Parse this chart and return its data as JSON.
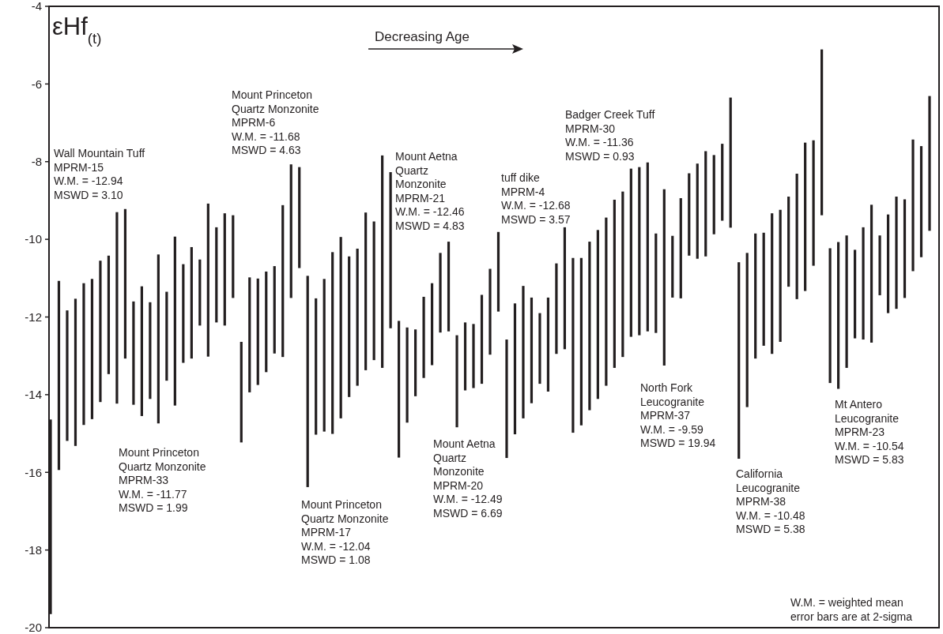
{
  "chart_data": {
    "type": "bar",
    "ylabel": "εHf$_{(t)}$",
    "annotations": [
      "Wall Mountain Tuff\nMPRM-15\nW.M. = -12.94\nMSWD = 3.10",
      "Mount Princeton\nQuartz Monzonite\nMPRM-33\nW.M. = -11.77\nMSWD = 1.99",
      "Mount Princeton\nQuartz Monzonite\nMPRM-6\nW.M. = -11.68\nMSWD = 4.63",
      "Mount Princeton\nQuartz Monzonite\nMPRM-17\nW.M. = -12.04\nMSWD = 1.08",
      "Mount Aetna\nQuartz\nMonzonite\nMPRM-21\nW.M. = -12.46\nMSWD = 4.83",
      "Mount Aetna\nQuartz\nMonzonite\nMPRM-20\nW.M. = -12.49\nMSWD = 6.69",
      "tuff dike\nMPRM-4\nW.M. = -12.68\nMSWD = 3.57",
      "Badger Creek Tuff\nMPRM-30\nW.M. = -11.36\nMSWD = 0.93",
      "North Fork\nLeucogranite\nMPRM-37\nW.M. = -9.59\nMSWD = 19.94",
      "California\nLeucogranite\nMPRM-38\nW.M. = -10.48\nMSWD = 5.38",
      "Mt Antero\nLeucogranite\nMPRM-23\nW.M. = -10.54\nMSWD = 5.83",
      "W.M. = weighted mean\nerror bars are at 2-sigma",
      "Decreasing Age"
    ],
    "categories": [
      null,
      null,
      null,
      null,
      null,
      null,
      null,
      null,
      null,
      null,
      null,
      null,
      null,
      null,
      null,
      null,
      null,
      null,
      null,
      null,
      null,
      null,
      null,
      null,
      null,
      null,
      null,
      null,
      null,
      null,
      null,
      null,
      null,
      null,
      null,
      null,
      null,
      null,
      null,
      null,
      null,
      null,
      null,
      null,
      null,
      null,
      null,
      null,
      null,
      null,
      null,
      null,
      null,
      null,
      null,
      null,
      null,
      null,
      null,
      null,
      null,
      null,
      null,
      null,
      null,
      null,
      null,
      null,
      null,
      null,
      null,
      null,
      null,
      null,
      null,
      null,
      null,
      null,
      null,
      null,
      null,
      null,
      null,
      null,
      null,
      null,
      null,
      null,
      null,
      null,
      null,
      null,
      null,
      null,
      null,
      null,
      null,
      null,
      null,
      null,
      null,
      null,
      null,
      null,
      null,
      null,
      null
    ],
    "base": [
      -19.65,
      -15.94,
      -15.19,
      -15.32,
      -14.78,
      -14.63,
      -14.19,
      -13.47,
      -14.23,
      -13.07,
      -14.26,
      -14.55,
      -14.11,
      -14.74,
      -13.64,
      -14.28,
      -13.18,
      -13.07,
      -12.22,
      -13.02,
      -12.14,
      -12.22,
      -11.51,
      -15.23,
      -13.94,
      -13.75,
      -13.42,
      -12.94,
      -13.03,
      -11.51,
      -10.74,
      -16.38,
      -15.03,
      -14.95,
      -15.01,
      -14.61,
      -14.06,
      -13.77,
      -13.37,
      -13.11,
      -13.31,
      -12.29,
      -15.62,
      -14.72,
      -14.04,
      -13.57,
      -13.24,
      -12.4,
      -12.37,
      -14.84,
      -13.89,
      -13.83,
      -13.72,
      -12.97,
      -11.86,
      -15.63,
      -15.02,
      -14.61,
      -14.22,
      -13.72,
      -13.92,
      -12.95,
      -12.83,
      -14.98,
      -14.79,
      -14.4,
      -14.11,
      -13.77,
      -13.31,
      -13.03,
      -12.51,
      -12.47,
      -12.37,
      -12.41,
      -13.25,
      -11.5,
      -11.52,
      -10.42,
      -10.5,
      -10.44,
      -9.87,
      -9.52,
      -9.7,
      -15.65,
      -14.32,
      -13.07,
      -12.74,
      -12.95,
      -12.64,
      -11.22,
      -11.54,
      -11.33,
      -10.68,
      -9.38,
      -13.7,
      -13.85,
      -13.31,
      -12.55,
      -12.58,
      -12.66,
      -11.44,
      -11.9,
      -11.79,
      -11.51,
      -10.82,
      -10.46,
      -9.78
    ],
    "values": [
      5.01,
      4.87,
      3.36,
      3.79,
      3.65,
      3.61,
      3.64,
      3.05,
      4.93,
      3.85,
      2.66,
      3.34,
      2.49,
      4.35,
      2.29,
      4.35,
      2.54,
      2.87,
      1.7,
      3.94,
      2.45,
      2.89,
      2.13,
      2.59,
      2.96,
      2.74,
      2.59,
      2.25,
      3.91,
      3.44,
      2.6,
      5.44,
      3.51,
      3.93,
      4.68,
      4.67,
      3.62,
      3.53,
      4.06,
      3.57,
      5.47,
      4.02,
      3.52,
      2.45,
      1.72,
      2.09,
      2.11,
      2.05,
      2.31,
      2.37,
      1.75,
      1.65,
      2.29,
      2.21,
      2.05,
      3.05,
      3.37,
      3.41,
      2.72,
      1.82,
      2.42,
      2.33,
      3.14,
      4.5,
      4.31,
      4.34,
      4.35,
      4.33,
      4.33,
      4.26,
      4.33,
      4.33,
      4.35,
      2.56,
      4.54,
      1.59,
      2.58,
      2.12,
      2.45,
      2.71,
      2.04,
      1.98,
      3.35,
      5.06,
      3.97,
      3.22,
      2.91,
      3.62,
      3.4,
      2.32,
      3.23,
      3.82,
      3.23,
      4.27,
      3.47,
      3.78,
      3.41,
      2.28,
      2.89,
      3.55,
      1.54,
      2.54,
      2.89,
      2.54,
      3.39,
      2.86,
      3.47
    ],
    "color": "#231f20",
    "ylim": [
      -20,
      -4
    ],
    "yticks": [
      -20,
      -18,
      -16,
      -14,
      -12,
      -10,
      -8,
      -6,
      -4
    ]
  }
}
